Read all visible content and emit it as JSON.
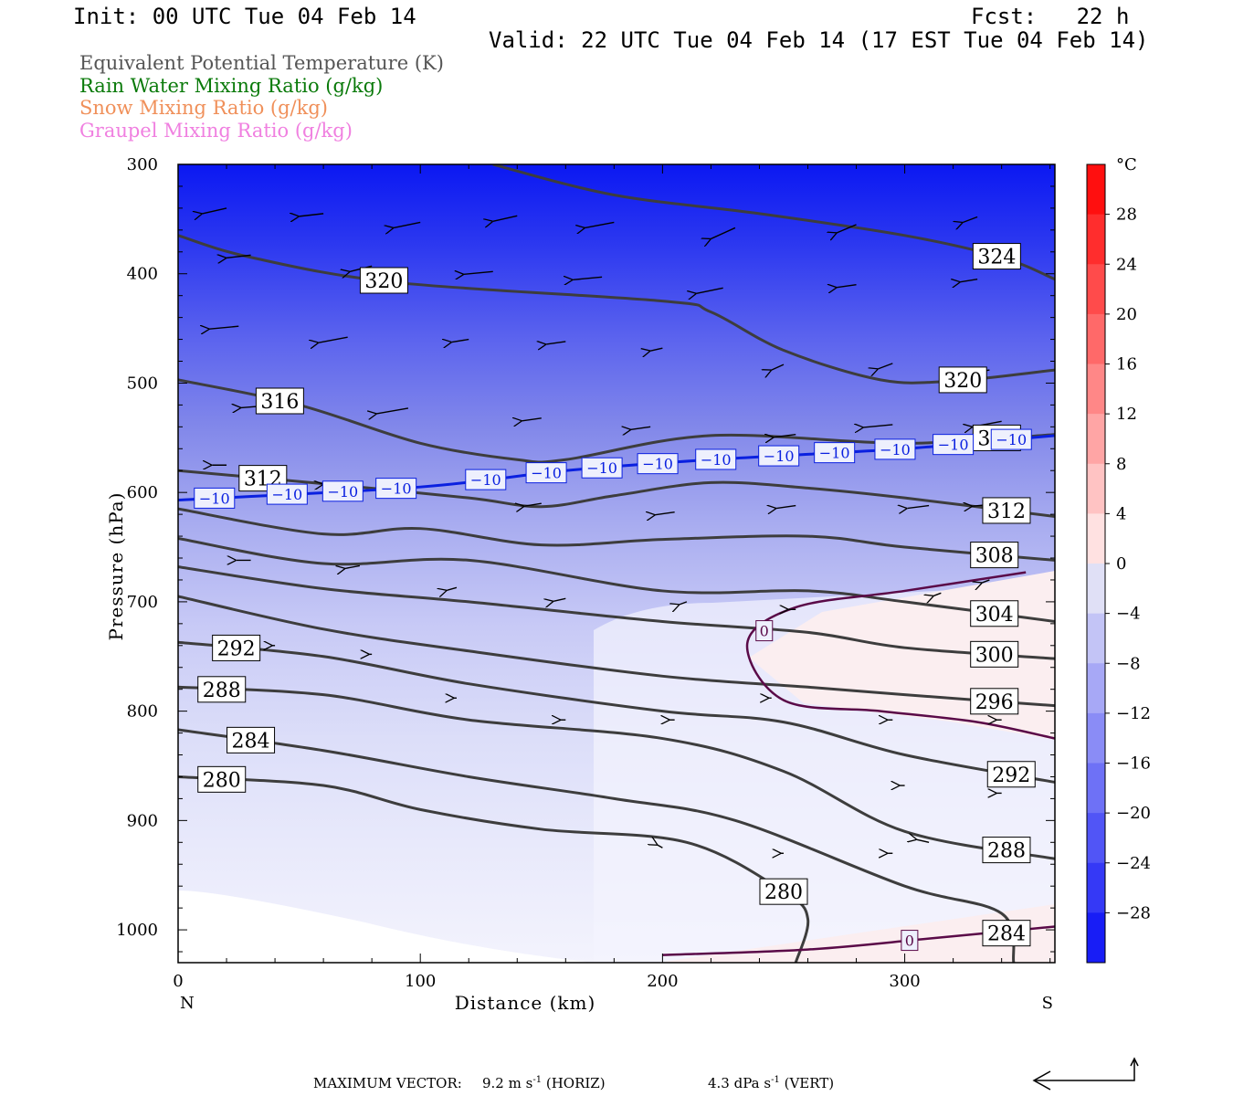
{
  "header": {
    "init": "Init: 00 UTC Tue 04 Feb 14",
    "fcst": "Fcst:   22 h",
    "valid": "Valid: 22 UTC Tue 04 Feb 14 (17 EST Tue 04 Feb 14)"
  },
  "legend": [
    {
      "label": "Equivalent Potential Temperature (K)",
      "color": "#555555"
    },
    {
      "label": "Rain Water Mixing Ratio (g/kg)",
      "color": "#0a7a0a"
    },
    {
      "label": "Snow Mixing Ratio (g/kg)",
      "color": "#f0905a"
    },
    {
      "label": "Graupel Mixing Ratio (g/kg)",
      "color": "#f080e0"
    }
  ],
  "footer": {
    "max_vector_label": "MAXIMUM VECTOR:",
    "horiz_value": "9.2 m s",
    "horiz_unit": "(HORIZ)",
    "vert_value": "4.3 dPa s",
    "vert_unit": "(VERT)",
    "exponent": "-1"
  },
  "chart_data": {
    "type": "heatmap",
    "title": "",
    "xlabel": "Distance (km)",
    "ylabel": "Pressure (hPa)",
    "x_ticks": [
      0,
      100,
      200,
      300
    ],
    "y_ticks": [
      300,
      400,
      500,
      600,
      700,
      800,
      900,
      1000
    ],
    "xlim": [
      0,
      362
    ],
    "ylim": [
      1030,
      300
    ],
    "x_end_labels": {
      "left": "N",
      "right": "S"
    },
    "colorbar": {
      "unit": "°C",
      "ticks": [
        28,
        24,
        20,
        16,
        12,
        8,
        4,
        0,
        -4,
        -8,
        -12,
        -16,
        -20,
        -24,
        -28
      ],
      "range": [
        -32,
        32
      ]
    },
    "theta_e_contours": [
      {
        "value": 324,
        "x": [
          130,
          180,
          240,
          300,
          340,
          362
        ],
        "p": [
          300,
          328,
          345,
          365,
          385,
          405
        ]
      },
      {
        "value": 320,
        "x": [
          0,
          30,
          90,
          200,
          220,
          250,
          290,
          320,
          362
        ],
        "p": [
          365,
          385,
          408,
          425,
          435,
          470,
          497,
          498,
          488
        ]
      },
      {
        "value": 316,
        "x": [
          0,
          50,
          100,
          140,
          160,
          220,
          300,
          362
        ],
        "p": [
          497,
          520,
          555,
          570,
          570,
          548,
          555,
          547
        ]
      },
      {
        "value": 312,
        "x": [
          0,
          60,
          120,
          150,
          180,
          220,
          260,
          300,
          362
        ],
        "p": [
          580,
          592,
          605,
          613,
          603,
          591,
          596,
          605,
          622
        ]
      },
      {
        "value": 308,
        "x": [
          0,
          60,
          100,
          150,
          200,
          260,
          300,
          362
        ],
        "p": [
          615,
          638,
          633,
          648,
          643,
          640,
          650,
          662
        ]
      },
      {
        "value": 304,
        "x": [
          0,
          60,
          120,
          200,
          260,
          300,
          362
        ],
        "p": [
          642,
          665,
          662,
          690,
          690,
          700,
          718
        ]
      },
      {
        "value": 300,
        "x": [
          0,
          60,
          120,
          200,
          260,
          300,
          362
        ],
        "p": [
          668,
          688,
          700,
          718,
          728,
          742,
          752
        ]
      },
      {
        "value": 296,
        "x": [
          0,
          60,
          120,
          200,
          260,
          300,
          362
        ],
        "p": [
          695,
          725,
          745,
          768,
          778,
          785,
          795
        ]
      },
      {
        "value": 292,
        "x": [
          0,
          60,
          120,
          200,
          250,
          300,
          362
        ],
        "p": [
          737,
          750,
          775,
          800,
          810,
          840,
          865
        ]
      },
      {
        "value": 288,
        "x": [
          0,
          60,
          120,
          200,
          250,
          300,
          362
        ],
        "p": [
          778,
          785,
          808,
          825,
          855,
          910,
          935
        ]
      },
      {
        "value": 284,
        "x": [
          0,
          60,
          120,
          180,
          230,
          300,
          340,
          345
        ],
        "p": [
          817,
          836,
          860,
          880,
          900,
          960,
          985,
          1030
        ]
      },
      {
        "value": 280,
        "x": [
          0,
          60,
          100,
          150,
          210,
          250,
          260,
          255
        ],
        "p": [
          860,
          868,
          890,
          908,
          920,
          965,
          990,
          1030
        ]
      }
    ],
    "isotherms": [
      {
        "value": -10,
        "x": [
          0,
          100,
          160,
          220,
          300,
          362
        ],
        "p": [
          607,
          595,
          580,
          570,
          560,
          548
        ]
      },
      {
        "value": 0,
        "x": [
          350,
          300,
          255,
          235,
          250,
          290,
          330,
          362
        ],
        "p": [
          673,
          690,
          705,
          738,
          790,
          800,
          810,
          825
        ]
      },
      {
        "value": 0,
        "x": [
          200,
          260,
          310,
          362
        ],
        "p": [
          1023,
          1018,
          1008,
          997
        ]
      }
    ],
    "wind_arrows": [
      [
        20,
        340,
        -10,
        -2
      ],
      [
        60,
        345,
        -10,
        -1
      ],
      [
        100,
        353,
        -11,
        -2
      ],
      [
        140,
        347,
        -10,
        -2
      ],
      [
        180,
        353,
        -12,
        -2
      ],
      [
        230,
        358,
        -10,
        -4
      ],
      [
        280,
        355,
        -8,
        -3
      ],
      [
        330,
        348,
        -6,
        -2
      ],
      [
        30,
        383,
        -10,
        -1
      ],
      [
        80,
        393,
        -9,
        -2
      ],
      [
        130,
        398,
        -12,
        -1
      ],
      [
        175,
        403,
        -12,
        -1
      ],
      [
        225,
        413,
        -11,
        -2
      ],
      [
        280,
        410,
        -8,
        -1
      ],
      [
        330,
        405,
        -7,
        -1
      ],
      [
        25,
        448,
        -12,
        -1
      ],
      [
        70,
        458,
        -12,
        -2
      ],
      [
        120,
        460,
        -7,
        -1
      ],
      [
        160,
        462,
        -8,
        -1
      ],
      [
        200,
        468,
        -5,
        -1
      ],
      [
        250,
        483,
        -5,
        -2
      ],
      [
        295,
        482,
        -6,
        -2
      ],
      [
        335,
        488,
        -6,
        -1
      ],
      [
        40,
        520,
        -14,
        -1
      ],
      [
        95,
        523,
        -13,
        -2
      ],
      [
        150,
        532,
        -8,
        -1
      ],
      [
        195,
        540,
        -8,
        -1
      ],
      [
        255,
        547,
        -9,
        -1
      ],
      [
        295,
        538,
        -12,
        -1
      ],
      [
        340,
        535,
        -12,
        -2
      ],
      [
        20,
        575,
        -6,
        0
      ],
      [
        70,
        590,
        -10,
        -1
      ],
      [
        150,
        610,
        -7,
        -1
      ],
      [
        205,
        618,
        -8,
        -1
      ],
      [
        255,
        612,
        -8,
        -1
      ],
      [
        310,
        612,
        -9,
        -1
      ],
      [
        340,
        610,
        -12,
        -1
      ],
      [
        30,
        662,
        -6,
        0
      ],
      [
        75,
        667,
        -6,
        -1
      ],
      [
        115,
        687,
        -4,
        -1
      ],
      [
        160,
        697,
        -5,
        -1
      ],
      [
        210,
        700,
        -3,
        -1
      ],
      [
        255,
        707,
        -3,
        0
      ],
      [
        315,
        692,
        -3,
        -1
      ],
      [
        335,
        680,
        -3,
        -1
      ],
      [
        40,
        740,
        -1,
        0
      ],
      [
        80,
        748,
        -1,
        0
      ],
      [
        115,
        788,
        -1,
        0
      ],
      [
        160,
        808,
        -2,
        0
      ],
      [
        205,
        808,
        -2,
        0
      ],
      [
        245,
        788,
        -1,
        0
      ],
      [
        295,
        808,
        -2,
        0
      ],
      [
        340,
        808,
        -2,
        0
      ],
      [
        300,
        868,
        -2,
        0
      ],
      [
        340,
        875,
        -2,
        0
      ],
      [
        250,
        930,
        -1,
        0
      ],
      [
        295,
        930,
        -2,
        0
      ],
      [
        310,
        920,
        -5,
        1
      ],
      [
        200,
        925,
        -2,
        1
      ]
    ]
  }
}
